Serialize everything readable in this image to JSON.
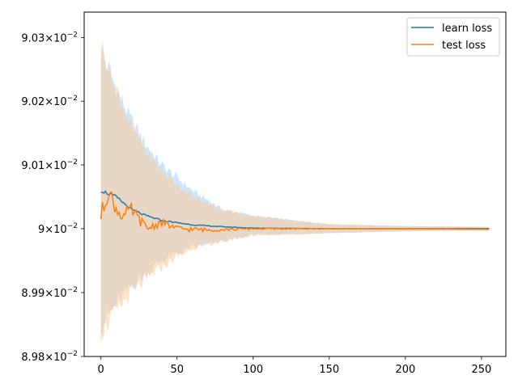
{
  "chart_data": {
    "type": "line",
    "xlim": [
      -11,
      266
    ],
    "ylim": [
      0.0898,
      0.09034
    ],
    "yscale": "log",
    "grid": false,
    "legend_position": "top-right",
    "x_ticks": [
      {
        "value": 0,
        "label": "0"
      },
      {
        "value": 50,
        "label": "50"
      },
      {
        "value": 100,
        "label": "100"
      },
      {
        "value": 150,
        "label": "150"
      },
      {
        "value": 200,
        "label": "200"
      },
      {
        "value": 250,
        "label": "250"
      }
    ],
    "y_ticks": [
      {
        "value": 0.0898,
        "mantissa": "8.98",
        "base": "10",
        "exp": "−2"
      },
      {
        "value": 0.0899,
        "mantissa": "8.99",
        "base": "10",
        "exp": "−2"
      },
      {
        "value": 0.09,
        "mantissa": "9",
        "base": "10",
        "exp": "−2"
      },
      {
        "value": 0.0901,
        "mantissa": "9.01",
        "base": "10",
        "exp": "−2"
      },
      {
        "value": 0.0902,
        "mantissa": "9.02",
        "base": "10",
        "exp": "−2"
      },
      {
        "value": 0.0903,
        "mantissa": "9.03",
        "base": "10",
        "exp": "−2"
      }
    ],
    "series": [
      {
        "name": "learn loss",
        "color": "#1f77b4",
        "band_color": "#a6cff5",
        "points": [
          [
            0,
            0.09006
          ],
          [
            10,
            0.09005
          ],
          [
            20,
            0.09003
          ],
          [
            30,
            0.09002
          ],
          [
            40,
            0.090013
          ],
          [
            60,
            0.090006
          ],
          [
            80,
            0.090003
          ],
          [
            100,
            0.090001
          ],
          [
            150,
            0.09
          ],
          [
            200,
            0.09
          ],
          [
            255,
            0.09
          ]
        ],
        "band_upper": [
          [
            0,
            0.09028
          ],
          [
            10,
            0.09022
          ],
          [
            20,
            0.09017
          ],
          [
            30,
            0.09013
          ],
          [
            40,
            0.0901
          ],
          [
            60,
            0.09006
          ],
          [
            80,
            0.09003
          ],
          [
            100,
            0.09002
          ],
          [
            150,
            0.090007
          ],
          [
            200,
            0.090004
          ],
          [
            255,
            0.090003
          ]
        ],
        "band_lower": [
          [
            0,
            0.08985
          ],
          [
            10,
            0.08988
          ],
          [
            20,
            0.08991
          ],
          [
            30,
            0.08993
          ],
          [
            40,
            0.08995
          ],
          [
            60,
            0.08997
          ],
          [
            80,
            0.08998
          ],
          [
            100,
            0.08999
          ],
          [
            150,
            0.089993
          ],
          [
            200,
            0.089996
          ],
          [
            255,
            0.089997
          ]
        ]
      },
      {
        "name": "test loss",
        "color": "#ff7f0e",
        "band_color": "#ffcc99",
        "points": [
          [
            0,
            0.09002
          ],
          [
            5,
            0.09006
          ],
          [
            10,
            0.09003
          ],
          [
            15,
            0.09002
          ],
          [
            20,
            0.09003
          ],
          [
            30,
            0.09
          ],
          [
            40,
            0.09001
          ],
          [
            50,
            0.09
          ],
          [
            70,
            0.089998
          ],
          [
            100,
            0.09
          ],
          [
            150,
            0.09
          ],
          [
            200,
            0.09
          ],
          [
            255,
            0.089999
          ]
        ],
        "band_upper": [
          [
            0,
            0.09029
          ],
          [
            10,
            0.09022
          ],
          [
            20,
            0.09016
          ],
          [
            30,
            0.09012
          ],
          [
            40,
            0.09009
          ],
          [
            60,
            0.09005
          ],
          [
            80,
            0.09003
          ],
          [
            100,
            0.09002
          ],
          [
            150,
            0.090007
          ],
          [
            200,
            0.090004
          ],
          [
            255,
            0.090003
          ]
        ],
        "band_lower": [
          [
            0,
            0.08984
          ],
          [
            10,
            0.08987
          ],
          [
            20,
            0.0899
          ],
          [
            30,
            0.08992
          ],
          [
            40,
            0.08994
          ],
          [
            60,
            0.08997
          ],
          [
            80,
            0.08998
          ],
          [
            100,
            0.08999
          ],
          [
            150,
            0.089993
          ],
          [
            200,
            0.089996
          ],
          [
            255,
            0.089997
          ]
        ]
      }
    ]
  }
}
